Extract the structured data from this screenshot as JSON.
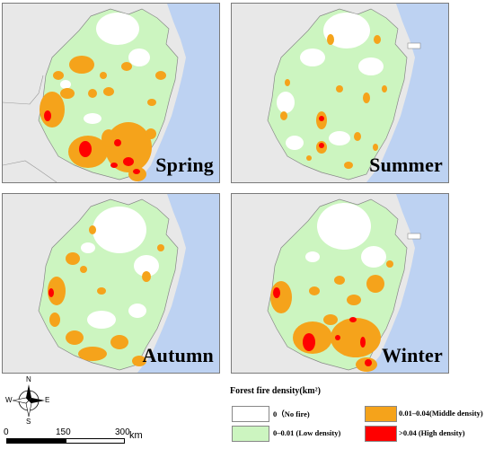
{
  "panels": [
    {
      "id": "spring",
      "label": "Spring"
    },
    {
      "id": "summer",
      "label": "Summer"
    },
    {
      "id": "autumn",
      "label": "Autumn"
    },
    {
      "id": "winter",
      "label": "Winter"
    }
  ],
  "legend": {
    "title": "Forest fire density(km²)",
    "items": [
      {
        "label": "0（No fire)",
        "color": "#ffffff"
      },
      {
        "label": "0–0.01 (Low density)",
        "color": "#ccf5c0"
      },
      {
        "label": "0.01–0.04(Middle density)",
        "color": "#f5a31b"
      },
      {
        "label": ">0.04 (High density)",
        "color": "#ff0000"
      }
    ]
  },
  "compass": {
    "n": "N",
    "s": "S",
    "e": "E",
    "w": "W"
  },
  "scale": {
    "ticks": [
      "0",
      "150",
      "300"
    ],
    "unit": "km"
  },
  "colors": {
    "sea": "#bdd2f2",
    "land_outside": "#e8e8e8",
    "low": "#ccf5c0",
    "middle": "#f5a31b",
    "high": "#ff0000",
    "none": "#ffffff"
  }
}
